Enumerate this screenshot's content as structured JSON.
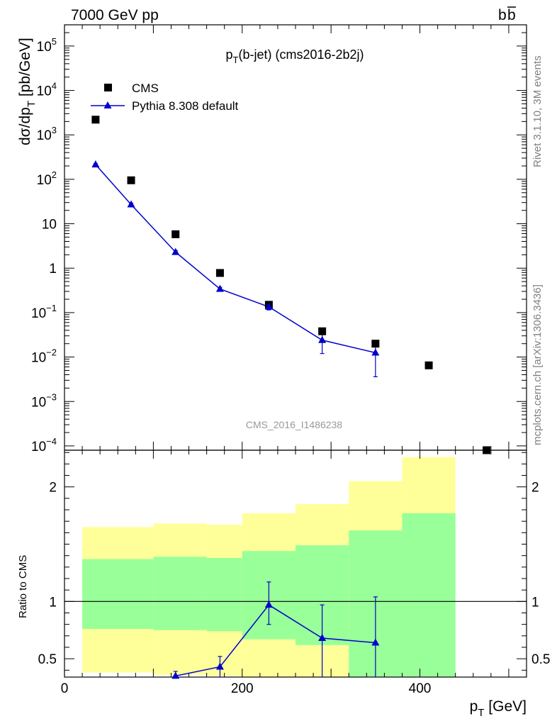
{
  "header": {
    "left": "7000 GeV pp",
    "right": "b",
    "right_bar": "b"
  },
  "side_labels": {
    "rivet": "Rivet 3.1.10,  3M events",
    "mcplots": "mcplots.cern.ch [arXiv:1306.3436]"
  },
  "chart_data": [
    {
      "type": "scatter",
      "panel": "main",
      "title": "p",
      "title_sub": "T",
      "title_rest": "(b-jet) (cms2016-2b2j)",
      "watermark": "CMS_2016_I1486238",
      "ylabel": "dσ/dp",
      "ylabel_sub": "T",
      "ylabel_rest": " [pb/GeV]",
      "yscale": "log",
      "xlim": [
        0,
        520
      ],
      "ylim": [
        8e-05,
        300000
      ],
      "y_ticks": [
        {
          "v": 100000,
          "base": "10",
          "exp": "5"
        },
        {
          "v": 10000,
          "base": "10",
          "exp": "4"
        },
        {
          "v": 1000,
          "base": "10",
          "exp": "3"
        },
        {
          "v": 100,
          "base": "10",
          "exp": "2"
        },
        {
          "v": 10,
          "base": "10",
          "exp": ""
        },
        {
          "v": 1,
          "base": "1",
          "exp": ""
        },
        {
          "v": 0.1,
          "base": "10",
          "exp": "−1"
        },
        {
          "v": 0.01,
          "base": "10",
          "exp": "−2"
        },
        {
          "v": 0.001,
          "base": "10",
          "exp": "−3"
        },
        {
          "v": 0.0001,
          "base": "10",
          "exp": "−4"
        }
      ],
      "legend": [
        {
          "label": "CMS",
          "marker": "square",
          "color": "#000000"
        },
        {
          "label": "Pythia 8.308 default",
          "marker": "triangle",
          "color": "#0000cc"
        }
      ],
      "series": [
        {
          "name": "CMS",
          "color": "#000000",
          "points": [
            {
              "x": 35,
              "y": 2200
            },
            {
              "x": 75,
              "y": 95
            },
            {
              "x": 125,
              "y": 5.8
            },
            {
              "x": 175,
              "y": 0.78
            },
            {
              "x": 230,
              "y": 0.15
            },
            {
              "x": 290,
              "y": 0.038
            },
            {
              "x": 350,
              "y": 0.02
            },
            {
              "x": 410,
              "y": 0.0065
            },
            {
              "x": 475,
              "y": 8e-05
            }
          ]
        },
        {
          "name": "Pythia 8.308 default",
          "color": "#0000cc",
          "points": [
            {
              "x": 35,
              "y": 215,
              "lo": 205,
              "hi": 225
            },
            {
              "x": 75,
              "y": 27,
              "lo": 25,
              "hi": 29
            },
            {
              "x": 125,
              "y": 2.3,
              "lo": 2.1,
              "hi": 2.5
            },
            {
              "x": 175,
              "y": 0.34,
              "lo": 0.31,
              "hi": 0.37
            },
            {
              "x": 230,
              "y": 0.135,
              "lo": 0.115,
              "hi": 0.16
            },
            {
              "x": 290,
              "y": 0.024,
              "lo": 0.012,
              "hi": 0.036
            },
            {
              "x": 350,
              "y": 0.0125,
              "lo": 0.0036,
              "hi": 0.021
            }
          ]
        }
      ]
    },
    {
      "type": "line",
      "panel": "ratio",
      "ylabel": "Ratio to CMS",
      "xlabel": "p",
      "xlabel_sub": "T",
      "xlabel_rest": " [GeV]",
      "xlim": [
        0,
        520
      ],
      "ylim": [
        0.34,
        2.32
      ],
      "x_ticks": [
        {
          "v": 0,
          "label": "0"
        },
        {
          "v": 200,
          "label": "200"
        },
        {
          "v": 400,
          "label": "400"
        }
      ],
      "y_ticks": [
        {
          "v": 0.5,
          "label": "0.5"
        },
        {
          "v": 1,
          "label": "1"
        },
        {
          "v": 2,
          "label": "2"
        }
      ],
      "bands": [
        {
          "x0": 20,
          "x1": 100,
          "y_lo": 0.38,
          "y_hi": 1.65,
          "g_lo": 0.76,
          "g_hi": 1.37
        },
        {
          "x0": 100,
          "x1": 160,
          "y_lo": 0.36,
          "y_hi": 1.68,
          "g_lo": 0.75,
          "g_hi": 1.39
        },
        {
          "x0": 160,
          "x1": 200,
          "y_lo": 0.35,
          "y_hi": 1.67,
          "g_lo": 0.74,
          "g_hi": 1.38
        },
        {
          "x0": 200,
          "x1": 260,
          "y_lo": 0.34,
          "y_hi": 1.77,
          "g_lo": 0.67,
          "g_hi": 1.44
        },
        {
          "x0": 260,
          "x1": 320,
          "y_lo": 0.34,
          "y_hi": 1.85,
          "g_lo": 0.62,
          "g_hi": 1.49
        },
        {
          "x0": 320,
          "x1": 380,
          "y_lo": 0.44,
          "y_hi": 2.05,
          "g_lo": 0.34,
          "g_hi": 1.62
        },
        {
          "x0": 380,
          "x1": 440,
          "y_lo": 0.34,
          "y_hi": 2.26,
          "g_lo": 0.34,
          "g_hi": 1.77
        }
      ],
      "band_colors": {
        "yellow": "#ffff99",
        "green": "#99ff99"
      },
      "series": [
        {
          "name": "Pythia 8.308 default",
          "color": "#0000cc",
          "points": [
            {
              "x": 125,
              "y": 0.35,
              "lo": 0.34,
              "hi": 0.39
            },
            {
              "x": 175,
              "y": 0.43,
              "lo": 0.34,
              "hi": 0.52
            },
            {
              "x": 230,
              "y": 0.97,
              "lo": 0.8,
              "hi": 1.17
            },
            {
              "x": 290,
              "y": 0.68,
              "lo": 0.34,
              "hi": 0.97
            },
            {
              "x": 350,
              "y": 0.64,
              "lo": 0.34,
              "hi": 1.04
            }
          ]
        }
      ]
    }
  ]
}
